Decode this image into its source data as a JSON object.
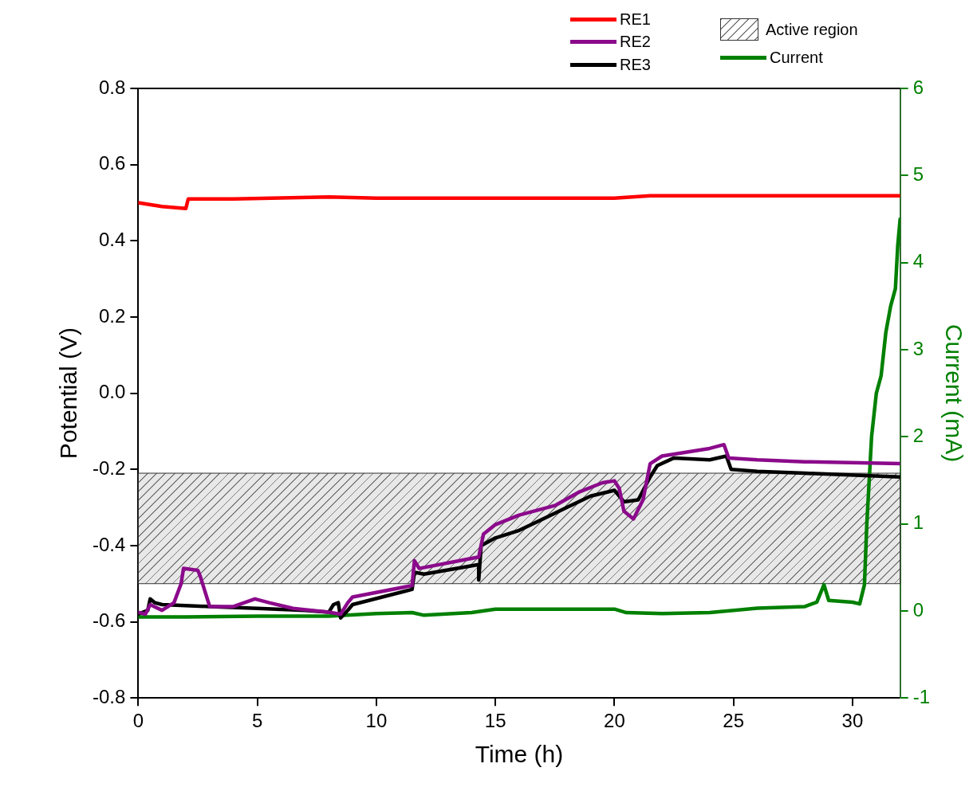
{
  "chart_data": {
    "type": "line",
    "xlabel": "Time (h)",
    "ylabel": "Potential (V)",
    "y2label": "Current (mA)",
    "xlim": [
      0,
      32
    ],
    "xticks": [
      0,
      5,
      10,
      15,
      20,
      25,
      30
    ],
    "ylim": [
      -0.8,
      0.8
    ],
    "yticks": [
      -0.8,
      -0.6,
      -0.4,
      -0.2,
      {
        "value": 0,
        "label": "0.0"
      },
      0.2,
      0.4,
      0.6,
      0.8
    ],
    "y2lim": [
      -1,
      6
    ],
    "y2ticks": [
      -1,
      0,
      1,
      2,
      3,
      4,
      5,
      6
    ],
    "grid": false,
    "legend": "top",
    "marker": "none",
    "line_style": "solid",
    "bands": [
      {
        "axis": "y",
        "from": -0.5,
        "to": -0.21,
        "label": "Active region",
        "color": "#808080"
      }
    ],
    "series": [
      {
        "name": "RE1",
        "color": "#ff0000",
        "x": [
          0,
          1,
          2,
          2.1,
          4,
          8,
          10,
          20,
          21.5,
          32
        ],
        "values": [
          0.5,
          0.49,
          0.485,
          0.51,
          0.51,
          0.515,
          0.512,
          0.512,
          0.518,
          0.518
        ]
      },
      {
        "name": "RE2",
        "color": "#8b0a8b",
        "x": [
          0,
          0.3,
          0.5,
          1,
          1.5,
          1.8,
          1.9,
          2.5,
          2.6,
          3,
          4,
          4.9,
          5.5,
          6.5,
          8,
          8.5,
          8.8,
          9,
          11.5,
          11.6,
          11.8,
          14.3,
          14.5,
          15,
          16,
          17.5,
          18.5,
          19.5,
          20,
          20.2,
          20.4,
          20.8,
          21.2,
          21.5,
          22,
          23,
          24,
          24.6,
          24.8,
          26,
          28,
          32
        ],
        "values": [
          -0.575,
          -0.58,
          -0.555,
          -0.57,
          -0.55,
          -0.5,
          -0.46,
          -0.465,
          -0.48,
          -0.56,
          -0.56,
          -0.54,
          -0.55,
          -0.565,
          -0.575,
          -0.58,
          -0.55,
          -0.535,
          -0.505,
          -0.44,
          -0.46,
          -0.43,
          -0.37,
          -0.345,
          -0.32,
          -0.295,
          -0.26,
          -0.235,
          -0.23,
          -0.25,
          -0.31,
          -0.33,
          -0.28,
          -0.185,
          -0.165,
          -0.155,
          -0.145,
          -0.135,
          -0.17,
          -0.175,
          -0.18,
          -0.185
        ]
      },
      {
        "name": "RE3",
        "color": "#000000",
        "x": [
          0,
          0.4,
          0.5,
          0.7,
          1,
          3,
          5,
          7,
          8,
          8.2,
          8.4,
          8.5,
          8.8,
          9,
          11.5,
          11.6,
          12,
          14.3,
          14.3,
          14.4,
          15,
          16,
          17,
          18,
          19,
          20,
          20.4,
          21,
          21.5,
          21.8,
          22.5,
          24,
          24.7,
          24.9,
          26,
          28,
          32
        ],
        "values": [
          -0.58,
          -0.57,
          -0.54,
          -0.55,
          -0.555,
          -0.56,
          -0.565,
          -0.57,
          -0.575,
          -0.555,
          -0.55,
          -0.59,
          -0.57,
          -0.555,
          -0.515,
          -0.47,
          -0.475,
          -0.45,
          -0.49,
          -0.4,
          -0.38,
          -0.36,
          -0.33,
          -0.3,
          -0.27,
          -0.255,
          -0.285,
          -0.28,
          -0.22,
          -0.19,
          -0.17,
          -0.175,
          -0.165,
          -0.2,
          -0.205,
          -0.21,
          -0.22
        ]
      },
      {
        "name": "Current",
        "color": "#008000",
        "axis": "y2",
        "x": [
          0,
          2,
          5,
          8,
          10,
          11.5,
          12,
          14,
          15,
          18,
          20,
          20.5,
          22,
          24,
          26,
          28,
          28.5,
          28.8,
          29,
          30,
          30.3,
          30.5,
          30.6,
          30.8,
          31,
          31.2,
          31.4,
          31.6,
          31.8,
          31.9,
          32
        ],
        "values": [
          -0.07,
          -0.07,
          -0.06,
          -0.06,
          -0.03,
          -0.02,
          -0.05,
          -0.02,
          0.02,
          0.02,
          0.02,
          -0.02,
          -0.03,
          -0.02,
          0.03,
          0.05,
          0.1,
          0.3,
          0.12,
          0.1,
          0.08,
          0.3,
          1,
          2,
          2.5,
          2.7,
          3.2,
          3.5,
          3.7,
          4.2,
          4.5
        ]
      }
    ]
  }
}
